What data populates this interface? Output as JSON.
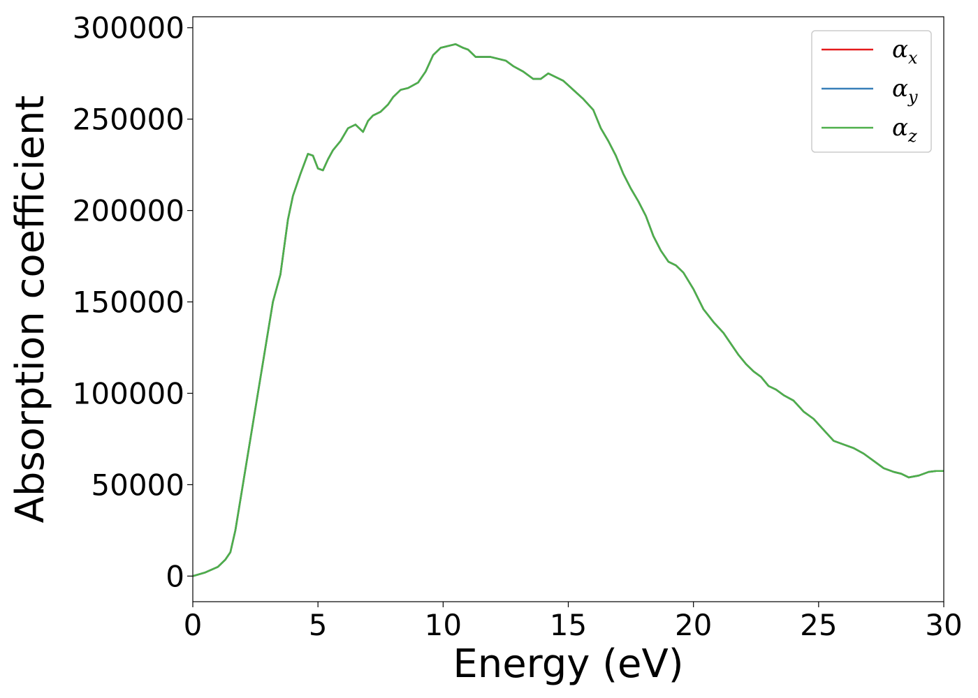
{
  "chart_data": {
    "type": "line",
    "xlabel": "Energy (eV)",
    "ylabel": "Absorption coefficient",
    "xlim": [
      0,
      30
    ],
    "ylim": [
      -14000,
      306000
    ],
    "xticks": [
      0,
      5,
      10,
      15,
      20,
      25,
      30
    ],
    "yticks": [
      0,
      50000,
      100000,
      150000,
      200000,
      250000,
      300000
    ],
    "grid": false,
    "legend_position": "top-right",
    "legend": [
      {
        "symbol": "α",
        "sub": "x",
        "color": "#e41a1c"
      },
      {
        "symbol": "α",
        "sub": "y",
        "color": "#377eb8"
      },
      {
        "symbol": "α",
        "sub": "z",
        "color": "#4daf4a"
      }
    ],
    "x": [
      0,
      0.5,
      1.0,
      1.3,
      1.5,
      1.7,
      2.0,
      2.3,
      2.6,
      2.9,
      3.2,
      3.5,
      3.8,
      4.0,
      4.3,
      4.6,
      4.8,
      5.0,
      5.2,
      5.4,
      5.6,
      5.9,
      6.2,
      6.5,
      6.8,
      7.0,
      7.2,
      7.5,
      7.8,
      8.0,
      8.3,
      8.6,
      9.0,
      9.3,
      9.6,
      9.9,
      10.2,
      10.5,
      10.8,
      11.0,
      11.3,
      11.6,
      11.9,
      12.2,
      12.5,
      12.8,
      13.2,
      13.6,
      13.9,
      14.2,
      14.5,
      14.8,
      15.2,
      15.6,
      16.0,
      16.3,
      16.6,
      16.9,
      17.2,
      17.5,
      17.8,
      18.1,
      18.4,
      18.7,
      19.0,
      19.3,
      19.6,
      20.0,
      20.4,
      20.8,
      21.2,
      21.5,
      21.8,
      22.1,
      22.4,
      22.7,
      23.0,
      23.3,
      23.6,
      24.0,
      24.4,
      24.8,
      25.2,
      25.6,
      26.0,
      26.4,
      26.8,
      27.2,
      27.6,
      28.0,
      28.3,
      28.6,
      29.0,
      29.4,
      29.7,
      30.0
    ],
    "series": [
      {
        "name": "α_x",
        "color": "#e41a1c",
        "values": [
          0,
          2000,
          5000,
          9000,
          13000,
          25000,
          50000,
          75000,
          100000,
          125000,
          150000,
          165000,
          195000,
          208000,
          220000,
          231000,
          230000,
          223000,
          222000,
          228000,
          233000,
          238000,
          245000,
          247000,
          243000,
          249000,
          252000,
          254000,
          258000,
          262000,
          266000,
          267000,
          270000,
          276000,
          285000,
          289000,
          290000,
          291000,
          289000,
          288000,
          284000,
          284000,
          284000,
          283000,
          282000,
          279000,
          276000,
          272000,
          272000,
          275000,
          273000,
          271000,
          266000,
          261000,
          255000,
          245000,
          238000,
          230000,
          220000,
          212000,
          205000,
          197000,
          186000,
          178000,
          172000,
          170000,
          166000,
          157000,
          146000,
          139000,
          133000,
          127000,
          121000,
          116000,
          112000,
          109000,
          104000,
          102000,
          99000,
          96000,
          90000,
          86000,
          80000,
          74000,
          72000,
          70000,
          67000,
          63000,
          59000,
          57000,
          56000,
          54000,
          55000,
          57000,
          57500,
          57500
        ]
      },
      {
        "name": "α_y",
        "color": "#377eb8",
        "values": [
          0,
          2000,
          5000,
          9000,
          13000,
          25000,
          50000,
          75000,
          100000,
          125000,
          150000,
          165000,
          195000,
          208000,
          220000,
          231000,
          230000,
          223000,
          222000,
          228000,
          233000,
          238000,
          245000,
          247000,
          243000,
          249000,
          252000,
          254000,
          258000,
          262000,
          266000,
          267000,
          270000,
          276000,
          285000,
          289000,
          290000,
          291000,
          289000,
          288000,
          284000,
          284000,
          284000,
          283000,
          282000,
          279000,
          276000,
          272000,
          272000,
          275000,
          273000,
          271000,
          266000,
          261000,
          255000,
          245000,
          238000,
          230000,
          220000,
          212000,
          205000,
          197000,
          186000,
          178000,
          172000,
          170000,
          166000,
          157000,
          146000,
          139000,
          133000,
          127000,
          121000,
          116000,
          112000,
          109000,
          104000,
          102000,
          99000,
          96000,
          90000,
          86000,
          80000,
          74000,
          72000,
          70000,
          67000,
          63000,
          59000,
          57000,
          56000,
          54000,
          55000,
          57000,
          57500,
          57500
        ]
      },
      {
        "name": "α_z",
        "color": "#4daf4a",
        "values": [
          0,
          2000,
          5000,
          9000,
          13000,
          25000,
          50000,
          75000,
          100000,
          125000,
          150000,
          165000,
          195000,
          208000,
          220000,
          231000,
          230000,
          223000,
          222000,
          228000,
          233000,
          238000,
          245000,
          247000,
          243000,
          249000,
          252000,
          254000,
          258000,
          262000,
          266000,
          267000,
          270000,
          276000,
          285000,
          289000,
          290000,
          291000,
          289000,
          288000,
          284000,
          284000,
          284000,
          283000,
          282000,
          279000,
          276000,
          272000,
          272000,
          275000,
          273000,
          271000,
          266000,
          261000,
          255000,
          245000,
          238000,
          230000,
          220000,
          212000,
          205000,
          197000,
          186000,
          178000,
          172000,
          170000,
          166000,
          157000,
          146000,
          139000,
          133000,
          127000,
          121000,
          116000,
          112000,
          109000,
          104000,
          102000,
          99000,
          96000,
          90000,
          86000,
          80000,
          74000,
          72000,
          70000,
          67000,
          63000,
          59000,
          57000,
          56000,
          54000,
          55000,
          57000,
          57500,
          57500
        ]
      }
    ]
  }
}
